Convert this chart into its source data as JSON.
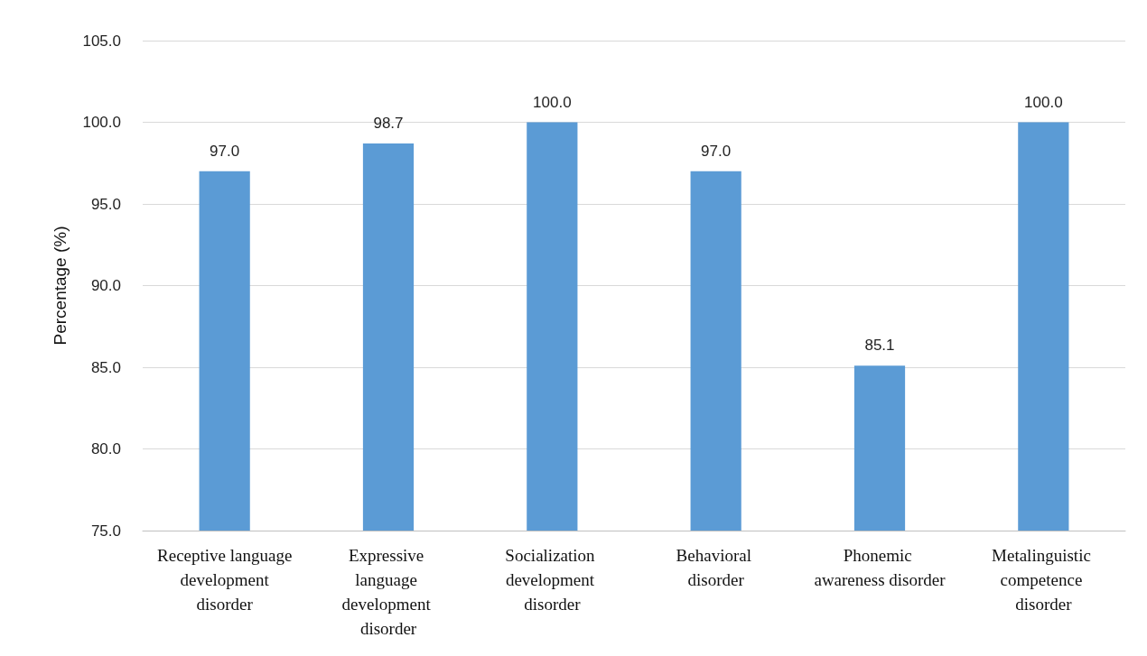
{
  "chart_data": {
    "type": "bar",
    "ylabel": "Percentage (%)",
    "categories": [
      "Receptive language development disorder",
      "Expressive language development disorder",
      "Socialization development disorder",
      "Behavioral disorder",
      "Phonemic awareness disorder",
      "Metalinguistic competence disorder"
    ],
    "values": [
      97.0,
      98.7,
      100.0,
      97.0,
      85.1,
      100.0
    ],
    "value_labels": [
      "97.0",
      "98.7",
      "100.0",
      "97.0",
      "85.1",
      "100.0"
    ],
    "color": "#5b9bd5",
    "ylim": [
      75,
      105
    ],
    "yticks": [
      {
        "value": 75,
        "label": "75.0"
      },
      {
        "value": 80,
        "label": "80.0"
      },
      {
        "value": 85,
        "label": "85.0"
      },
      {
        "value": 90,
        "label": "90.0"
      },
      {
        "value": 95,
        "label": "95.0"
      },
      {
        "value": 100,
        "label": "100.0"
      },
      {
        "value": 105,
        "label": "105.0"
      }
    ],
    "grid": "y"
  }
}
